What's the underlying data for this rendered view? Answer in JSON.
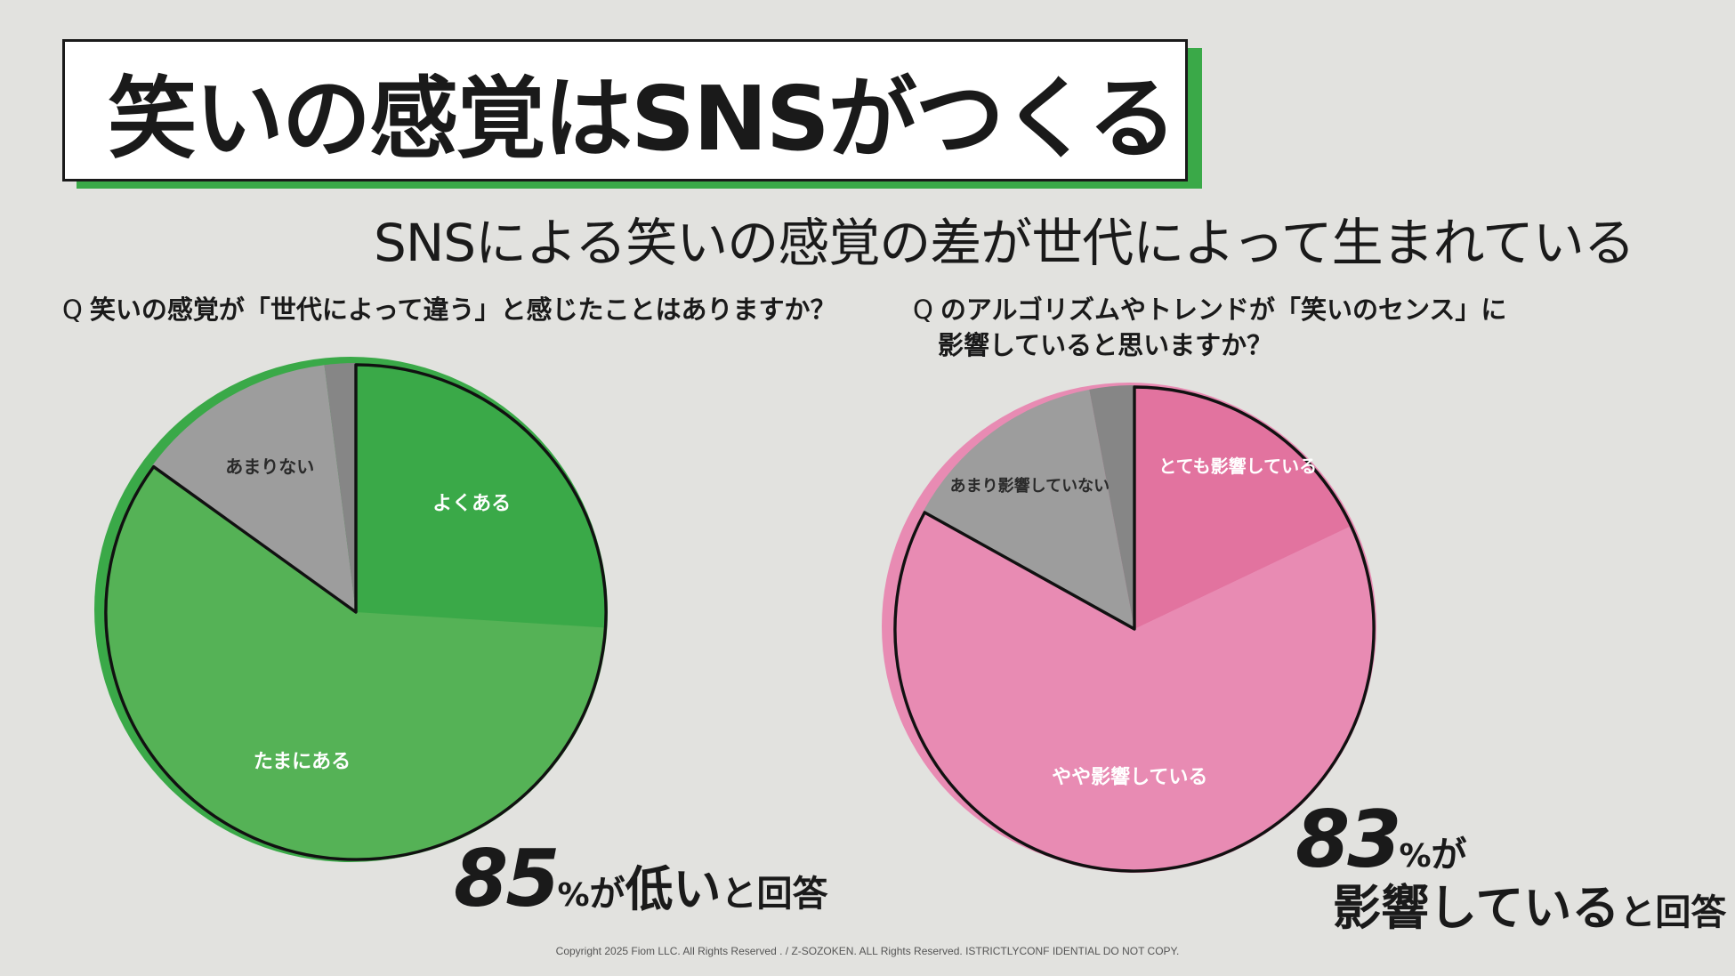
{
  "title": "笑いの感覚はSNSがつくる",
  "subtitle": "SNSによる笑いの感覚の差が世代によって生まれている",
  "colors": {
    "background": "#e2e2df",
    "accent_green": "#3aa948",
    "pink": "#e88bb3"
  },
  "chart_data": [
    {
      "type": "pie",
      "question_mark": "Q",
      "question": "笑いの感覚が「世代によって違う」と感じたことはありますか？",
      "labels": [
        "よくある",
        "たまにある",
        "あまりない",
        ""
      ],
      "values": [
        26,
        59,
        13,
        2
      ],
      "colors": [
        "#3aa948",
        "#55b256",
        "#9d9d9d",
        "#868686"
      ],
      "result": {
        "number": "85",
        "percent": "%",
        "ga": "が",
        "phrase": "低い",
        "suffix": "と回答"
      }
    },
    {
      "type": "pie",
      "question_mark": "Q",
      "question_line1": "のアルゴリズムやトレンドが「笑いのセンス」に",
      "question_line2": "影響していると思いますか？",
      "labels": [
        "とても影響している",
        "やや影響している",
        "あまり影響していない",
        ""
      ],
      "values": [
        18,
        65,
        14,
        3
      ],
      "colors": [
        "#e2739f",
        "#e88bb3",
        "#9d9d9d",
        "#868686"
      ],
      "result": {
        "number": "83",
        "percent": "%",
        "ga": "が",
        "phrase": "影響している",
        "suffix": "と回答"
      }
    }
  ],
  "copyright": "Copyright 2025 Fiom LLC. All Rights Reserved . / Z-SOZOKEN. ALL Rights Reserved. ISTRICTLYCONF IDENTIAL DO NOT COPY."
}
